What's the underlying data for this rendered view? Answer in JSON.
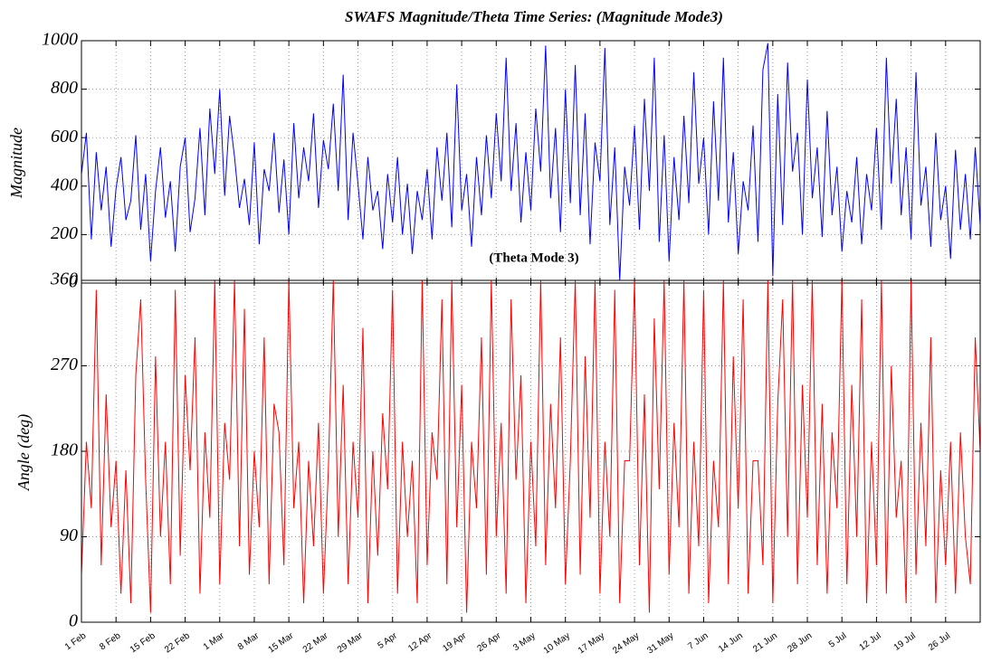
{
  "chart_data": [
    {
      "type": "line",
      "title": "SWAFS Magnitude/Theta Time Series: (Magnitude Mode3)",
      "ylabel": "Magnitude",
      "ylim": [
        0,
        1000
      ],
      "yticks": [
        0,
        200,
        400,
        600,
        800,
        1000
      ],
      "xlim": [
        0,
        182
      ],
      "grid": true,
      "xtick_labels": false,
      "xticks": [
        0,
        7,
        14,
        21,
        28,
        35,
        42,
        49,
        56,
        63,
        70,
        77,
        84,
        91,
        98,
        105,
        112,
        119,
        126,
        133,
        140,
        147,
        154,
        161,
        168,
        175
      ],
      "x": [
        0,
        1,
        2,
        3,
        4,
        5,
        6,
        7,
        8,
        9,
        10,
        11,
        12,
        13,
        14,
        15,
        16,
        17,
        18,
        19,
        20,
        21,
        22,
        23,
        24,
        25,
        26,
        27,
        28,
        29,
        30,
        31,
        32,
        33,
        34,
        35,
        36,
        37,
        38,
        39,
        40,
        41,
        42,
        43,
        44,
        45,
        46,
        47,
        48,
        49,
        50,
        51,
        52,
        53,
        54,
        55,
        56,
        57,
        58,
        59,
        60,
        61,
        62,
        63,
        64,
        65,
        66,
        67,
        68,
        69,
        70,
        71,
        72,
        73,
        74,
        75,
        76,
        77,
        78,
        79,
        80,
        81,
        82,
        83,
        84,
        85,
        86,
        87,
        88,
        89,
        90,
        91,
        92,
        93,
        94,
        95,
        96,
        97,
        98,
        99,
        100,
        101,
        102,
        103,
        104,
        105,
        106,
        107,
        108,
        109,
        110,
        111,
        112,
        113,
        114,
        115,
        116,
        117,
        118,
        119,
        120,
        121,
        122,
        123,
        124,
        125,
        126,
        127,
        128,
        129,
        130,
        131,
        132,
        133,
        134,
        135,
        136,
        137,
        138,
        139,
        140,
        141,
        142,
        143,
        144,
        145,
        146,
        147,
        148,
        149,
        150,
        151,
        152,
        153,
        154,
        155,
        156,
        157,
        158,
        159,
        160,
        161,
        162,
        163,
        164,
        165,
        166,
        167,
        168,
        169,
        170,
        171,
        172,
        173,
        174,
        175,
        176,
        177,
        178,
        179,
        180,
        181,
        182
      ],
      "series": [
        {
          "color": "#0000ff",
          "values": [
            450,
            620,
            180,
            540,
            300,
            480,
            150,
            390,
            520,
            260,
            340,
            610,
            220,
            450,
            90,
            380,
            560,
            270,
            420,
            130,
            480,
            600,
            210,
            350,
            640,
            280,
            720,
            450,
            800,
            360,
            690,
            520,
            310,
            430,
            240,
            580,
            160,
            470,
            380,
            620,
            290,
            510,
            200,
            660,
            350,
            560,
            420,
            700,
            310,
            590,
            470,
            740,
            380,
            860,
            260,
            620,
            410,
            180,
            520,
            300,
            380,
            140,
            450,
            250,
            520,
            200,
            410,
            120,
            380,
            260,
            470,
            180,
            560,
            340,
            620,
            230,
            820,
            300,
            450,
            150,
            520,
            280,
            610,
            350,
            700,
            420,
            930,
            380,
            660,
            250,
            540,
            300,
            720,
            460,
            980,
            350,
            640,
            210,
            800,
            330,
            900,
            280,
            700,
            160,
            580,
            420,
            970,
            240,
            560,
            10,
            480,
            320,
            650,
            220,
            760,
            380,
            930,
            170,
            610,
            90,
            520,
            260,
            690,
            330,
            870,
            410,
            600,
            200,
            750,
            340,
            930,
            250,
            540,
            120,
            420,
            300,
            650,
            170,
            880,
            990,
            30,
            780,
            240,
            910,
            460,
            620,
            200,
            840,
            350,
            560,
            190,
            710,
            280,
            480,
            130,
            380,
            250,
            520,
            160,
            450,
            300,
            640,
            220,
            930,
            410,
            760,
            280,
            560,
            180,
            870,
            320,
            480,
            150,
            620,
            260,
            400,
            100,
            550,
            220,
            450,
            180,
            560,
            240
          ]
        }
      ]
    },
    {
      "type": "line",
      "title": "(Theta Mode 3)",
      "ylabel": "Angle (deg)",
      "ylim": [
        0,
        360
      ],
      "yticks": [
        0,
        90,
        180,
        270,
        360
      ],
      "xlim": [
        0,
        182
      ],
      "grid": true,
      "xtick_labels": true,
      "xticks": [
        {
          "value": 0,
          "label": "1 Feb"
        },
        {
          "value": 7,
          "label": "8 Feb"
        },
        {
          "value": 14,
          "label": "15 Feb"
        },
        {
          "value": 21,
          "label": "22 Feb"
        },
        {
          "value": 28,
          "label": "1 Mar"
        },
        {
          "value": 35,
          "label": "8 Mar"
        },
        {
          "value": 42,
          "label": "15 Mar"
        },
        {
          "value": 49,
          "label": "22 Mar"
        },
        {
          "value": 56,
          "label": "29 Mar"
        },
        {
          "value": 63,
          "label": "5 Apr"
        },
        {
          "value": 70,
          "label": "12 Apr"
        },
        {
          "value": 77,
          "label": "19 Apr"
        },
        {
          "value": 84,
          "label": "26 Apr"
        },
        {
          "value": 91,
          "label": "3 May"
        },
        {
          "value": 98,
          "label": "10 May"
        },
        {
          "value": 105,
          "label": "17 May"
        },
        {
          "value": 112,
          "label": "24 May"
        },
        {
          "value": 119,
          "label": "31 May"
        },
        {
          "value": 126,
          "label": "7 Jun"
        },
        {
          "value": 133,
          "label": "14 Jun"
        },
        {
          "value": 140,
          "label": "21 Jun"
        },
        {
          "value": 147,
          "label": "28 Jun"
        },
        {
          "value": 154,
          "label": "5 Jul"
        },
        {
          "value": 161,
          "label": "12 Jul"
        },
        {
          "value": 168,
          "label": "19 Jul"
        },
        {
          "value": 175,
          "label": "26 Jul"
        }
      ],
      "x": [
        0,
        1,
        2,
        3,
        4,
        5,
        6,
        7,
        8,
        9,
        10,
        11,
        12,
        13,
        14,
        15,
        16,
        17,
        18,
        19,
        20,
        21,
        22,
        23,
        24,
        25,
        26,
        27,
        28,
        29,
        30,
        31,
        32,
        33,
        34,
        35,
        36,
        37,
        38,
        39,
        40,
        41,
        42,
        43,
        44,
        45,
        46,
        47,
        48,
        49,
        50,
        51,
        52,
        53,
        54,
        55,
        56,
        57,
        58,
        59,
        60,
        61,
        62,
        63,
        64,
        65,
        66,
        67,
        68,
        69,
        70,
        71,
        72,
        73,
        74,
        75,
        76,
        77,
        78,
        79,
        80,
        81,
        82,
        83,
        84,
        85,
        86,
        87,
        88,
        89,
        90,
        91,
        92,
        93,
        94,
        95,
        96,
        97,
        98,
        99,
        100,
        101,
        102,
        103,
        104,
        105,
        106,
        107,
        108,
        109,
        110,
        111,
        112,
        113,
        114,
        115,
        116,
        117,
        118,
        119,
        120,
        121,
        122,
        123,
        124,
        125,
        126,
        127,
        128,
        129,
        130,
        131,
        132,
        133,
        134,
        135,
        136,
        137,
        138,
        139,
        140,
        141,
        142,
        143,
        144,
        145,
        146,
        147,
        148,
        149,
        150,
        151,
        152,
        153,
        154,
        155,
        156,
        157,
        158,
        159,
        160,
        161,
        162,
        163,
        164,
        165,
        166,
        167,
        168,
        169,
        170,
        171,
        172,
        173,
        174,
        175,
        176,
        177,
        178,
        179,
        180,
        181,
        182
      ],
      "series": [
        {
          "color": "#ff0000",
          "values": [
            50,
            190,
            120,
            350,
            60,
            240,
            100,
            170,
            30,
            160,
            20,
            260,
            340,
            150,
            10,
            280,
            90,
            190,
            40,
            350,
            70,
            260,
            160,
            300,
            30,
            200,
            110,
            360,
            40,
            210,
            150,
            360,
            80,
            330,
            50,
            180,
            100,
            300,
            40,
            230,
            200,
            60,
            360,
            120,
            190,
            20,
            170,
            80,
            210,
            30,
            160,
            360,
            90,
            250,
            40,
            190,
            110,
            310,
            20,
            180,
            70,
            220,
            140,
            350,
            30,
            190,
            90,
            170,
            20,
            360,
            60,
            200,
            150,
            340,
            40,
            360,
            100,
            250,
            10,
            190,
            120,
            300,
            50,
            360,
            90,
            210,
            30,
            340,
            150,
            260,
            20,
            190,
            80,
            360,
            60,
            230,
            120,
            300,
            40,
            170,
            360,
            50,
            280,
            110,
            360,
            30,
            190,
            90,
            350,
            20,
            170,
            170,
            360,
            60,
            240,
            10,
            320,
            140,
            360,
            50,
            210,
            100,
            360,
            30,
            190,
            80,
            350,
            20,
            170,
            100,
            360,
            40,
            280,
            120,
            340,
            30,
            170,
            170,
            60,
            360,
            20,
            230,
            340,
            90,
            360,
            40,
            250,
            110,
            360,
            60,
            230,
            30,
            200,
            120,
            360,
            40,
            250,
            90,
            340,
            20,
            190,
            60,
            360,
            30,
            270,
            110,
            170,
            20,
            360,
            50,
            210,
            80,
            300,
            20,
            160,
            60,
            190,
            30,
            200,
            90,
            40,
            300,
            180
          ]
        }
      ]
    }
  ]
}
